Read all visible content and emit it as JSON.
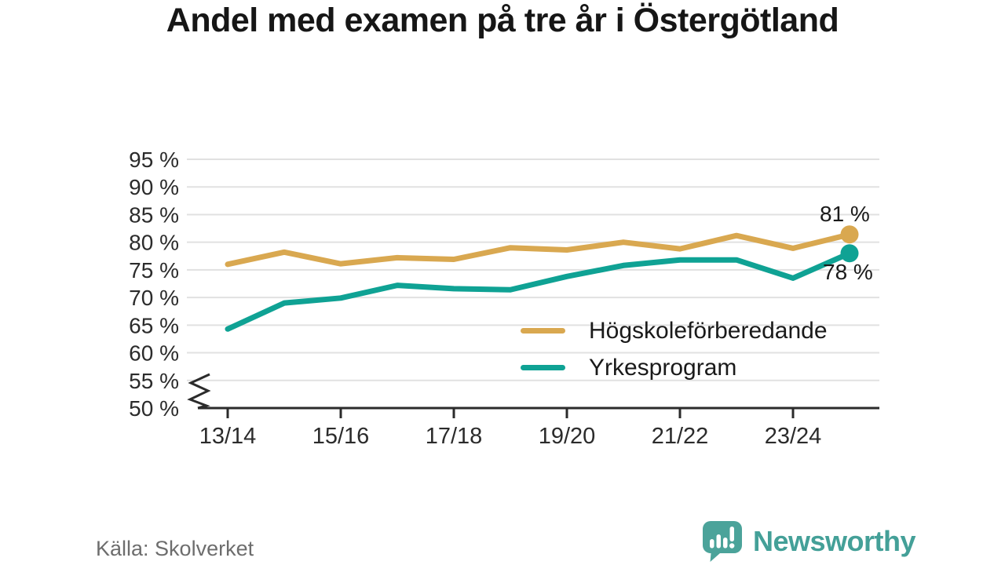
{
  "title": "Andel med examen på tre år i Östergötland",
  "source": "Källa: Skolverket",
  "brand": {
    "name": "Newsworthy",
    "color": "#44a098",
    "icon": "newsworthy-speech-bubble-chart-icon"
  },
  "colors": {
    "series_gold": "#d9a850",
    "series_teal": "#0fa294",
    "gridline": "#e1e1e1",
    "axis": "#2b2b2b",
    "tick_text": "#2b2b2b",
    "muted_text": "#6d6d6d"
  },
  "chart_data": {
    "type": "line",
    "title": "Andel med examen på tre år i Östergötland",
    "x": [
      "13/14",
      "14/15",
      "15/16",
      "16/17",
      "17/18",
      "18/19",
      "19/20",
      "20/21",
      "21/22",
      "22/23",
      "23/24",
      "24/25"
    ],
    "x_tick_labels": [
      "13/14",
      "15/16",
      "17/18",
      "19/20",
      "21/22",
      "23/24"
    ],
    "y_ticks": [
      95,
      90,
      85,
      80,
      75,
      70,
      65,
      60,
      55,
      50
    ],
    "y_tick_labels": [
      "95 %",
      "90 %",
      "85 %",
      "80 %",
      "75 %",
      "70 %",
      "65 %",
      "60 %",
      "55 %",
      "50 %"
    ],
    "ylim": [
      50,
      95
    ],
    "axis_break": true,
    "grid": "horizontal",
    "legend_position": "inside-right",
    "series": [
      {
        "name": "Högskoleförberedande",
        "color": "#d9a850",
        "end_label": "81 %",
        "values": [
          76.0,
          78.2,
          76.1,
          77.2,
          76.9,
          79.0,
          78.6,
          80.0,
          78.8,
          81.2,
          78.9,
          81.4
        ]
      },
      {
        "name": "Yrkesprogram",
        "color": "#0fa294",
        "end_label": "78 %",
        "values": [
          64.3,
          69.0,
          69.9,
          72.2,
          71.6,
          71.4,
          73.8,
          75.8,
          76.8,
          76.8,
          73.5,
          78.0
        ]
      }
    ]
  }
}
